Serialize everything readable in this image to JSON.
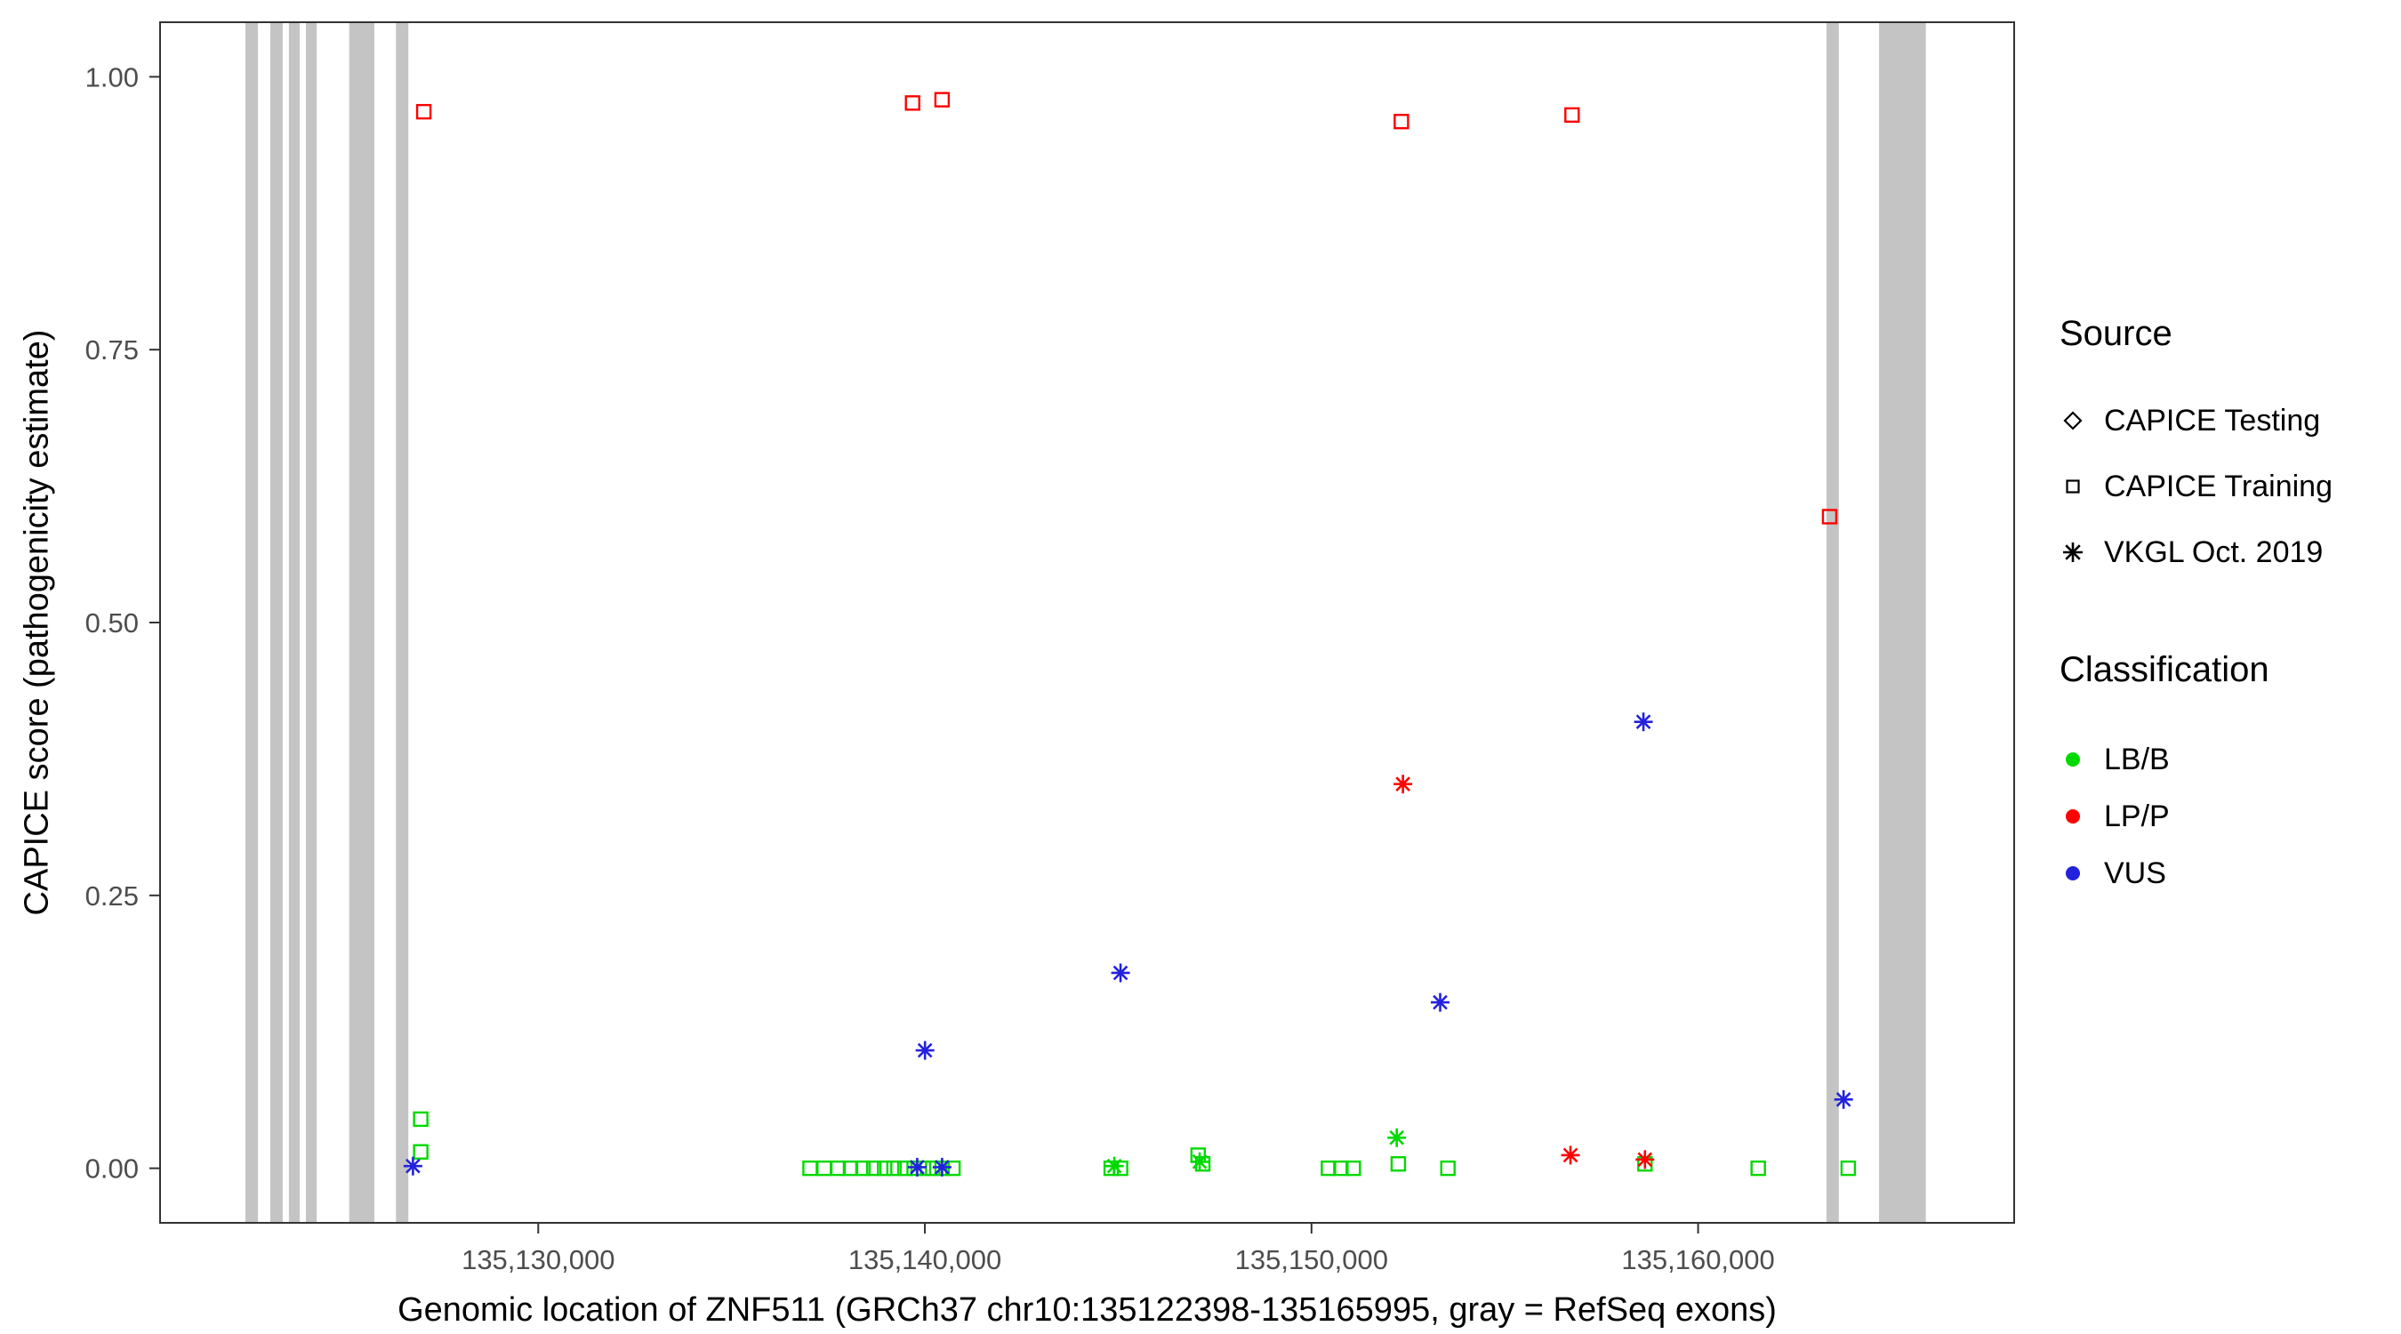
{
  "chart_data": {
    "type": "scatter",
    "title": "",
    "xlabel": "Genomic location of ZNF511 (GRCh37 chr10:135122398-135165995, gray = RefSeq exons)",
    "ylabel": "CAPICE score (pathogenicity estimate)",
    "x_domain": [
      135120218,
      135168175
    ],
    "y_domain": [
      -0.05,
      1.05
    ],
    "grid": false,
    "legend_position": "right",
    "panel_border_color": "#333333",
    "tick_color": "#333333",
    "tick_label_color": "#4d4d4d",
    "exon_color": "#c4c4c4",
    "class_colors": {
      "LB/B": "#00d900",
      "LP/P": "#ff0000",
      "VUS": "#2222dd"
    },
    "x_ticks": [
      {
        "value": 135130000,
        "label": "135,130,000"
      },
      {
        "value": 135140000,
        "label": "135,140,000"
      },
      {
        "value": 135150000,
        "label": "135,150,000"
      },
      {
        "value": 135160000,
        "label": "135,160,000"
      }
    ],
    "y_ticks": [
      {
        "value": 0.0,
        "label": "0.00"
      },
      {
        "value": 0.25,
        "label": "0.25"
      },
      {
        "value": 0.5,
        "label": "0.50"
      },
      {
        "value": 0.75,
        "label": "0.75"
      },
      {
        "value": 1.0,
        "label": "1.00"
      }
    ],
    "exons": [
      {
        "start": 135122425,
        "end": 135122750
      },
      {
        "start": 135123070,
        "end": 135123390
      },
      {
        "start": 135123550,
        "end": 135123830
      },
      {
        "start": 135123990,
        "end": 135124270
      },
      {
        "start": 135125110,
        "end": 135125760
      },
      {
        "start": 135126320,
        "end": 135126640
      },
      {
        "start": 135163320,
        "end": 135163640
      },
      {
        "start": 135164680,
        "end": 135165890
      }
    ],
    "points": [
      {
        "x": 135126960,
        "y": 0.045,
        "shape": "square",
        "cls": "LB/B"
      },
      {
        "x": 135126960,
        "y": 0.015,
        "shape": "square",
        "cls": "LB/B"
      },
      {
        "x": 135137030,
        "y": 0.0,
        "shape": "square",
        "cls": "LB/B"
      },
      {
        "x": 135137395,
        "y": 0.0,
        "shape": "square",
        "cls": "LB/B"
      },
      {
        "x": 135137756,
        "y": 0.0,
        "shape": "square",
        "cls": "LB/B"
      },
      {
        "x": 135138077,
        "y": 0.0,
        "shape": "square",
        "cls": "LB/B"
      },
      {
        "x": 135138398,
        "y": 0.0,
        "shape": "square",
        "cls": "LB/B"
      },
      {
        "x": 135138679,
        "y": 0.0,
        "shape": "square",
        "cls": "LB/B"
      },
      {
        "x": 135138960,
        "y": 0.0,
        "shape": "square",
        "cls": "LB/B"
      },
      {
        "x": 135139201,
        "y": 0.0,
        "shape": "square",
        "cls": "LB/B"
      },
      {
        "x": 135139482,
        "y": 0.0,
        "shape": "square",
        "cls": "LB/B"
      },
      {
        "x": 135139722,
        "y": 0.0,
        "shape": "square",
        "cls": "LB/B"
      },
      {
        "x": 135139963,
        "y": 0.0,
        "shape": "square",
        "cls": "LB/B"
      },
      {
        "x": 135140204,
        "y": 0.0,
        "shape": "square",
        "cls": "LB/B"
      },
      {
        "x": 135140445,
        "y": 0.0,
        "shape": "square",
        "cls": "LB/B"
      },
      {
        "x": 135140726,
        "y": 0.0,
        "shape": "square",
        "cls": "LB/B"
      },
      {
        "x": 135144820,
        "y": 0.0,
        "shape": "square",
        "cls": "LB/B"
      },
      {
        "x": 135145061,
        "y": 0.0,
        "shape": "square",
        "cls": "LB/B"
      },
      {
        "x": 135147068,
        "y": 0.012,
        "shape": "square",
        "cls": "LB/B"
      },
      {
        "x": 135147188,
        "y": 0.004,
        "shape": "square",
        "cls": "LB/B"
      },
      {
        "x": 135150439,
        "y": 0.0,
        "shape": "square",
        "cls": "LB/B"
      },
      {
        "x": 135150760,
        "y": 0.0,
        "shape": "square",
        "cls": "LB/B"
      },
      {
        "x": 135151081,
        "y": 0.0,
        "shape": "square",
        "cls": "LB/B"
      },
      {
        "x": 135152245,
        "y": 0.004,
        "shape": "square",
        "cls": "LB/B"
      },
      {
        "x": 135153529,
        "y": 0.0,
        "shape": "square",
        "cls": "LB/B"
      },
      {
        "x": 135158625,
        "y": 0.004,
        "shape": "square",
        "cls": "LB/B"
      },
      {
        "x": 135161555,
        "y": 0.0,
        "shape": "square",
        "cls": "LB/B"
      },
      {
        "x": 135163883,
        "y": 0.0,
        "shape": "square",
        "cls": "LB/B"
      },
      {
        "x": 135127040,
        "y": 0.968,
        "shape": "square",
        "cls": "LP/P"
      },
      {
        "x": 135139682,
        "y": 0.976,
        "shape": "square",
        "cls": "LP/P"
      },
      {
        "x": 135140445,
        "y": 0.979,
        "shape": "square",
        "cls": "LP/P"
      },
      {
        "x": 135152325,
        "y": 0.959,
        "shape": "square",
        "cls": "LP/P"
      },
      {
        "x": 135156739,
        "y": 0.965,
        "shape": "square",
        "cls": "LP/P"
      },
      {
        "x": 135163401,
        "y": 0.597,
        "shape": "square",
        "cls": "LP/P"
      },
      {
        "x": 135126759,
        "y": 0.002,
        "shape": "asterisk",
        "cls": "VUS"
      },
      {
        "x": 135139802,
        "y": 0.001,
        "shape": "asterisk",
        "cls": "VUS"
      },
      {
        "x": 135140445,
        "y": 0.001,
        "shape": "asterisk",
        "cls": "VUS"
      },
      {
        "x": 135140003,
        "y": 0.108,
        "shape": "asterisk",
        "cls": "VUS"
      },
      {
        "x": 135145061,
        "y": 0.179,
        "shape": "asterisk",
        "cls": "VUS"
      },
      {
        "x": 135153328,
        "y": 0.152,
        "shape": "asterisk",
        "cls": "VUS"
      },
      {
        "x": 135158585,
        "y": 0.409,
        "shape": "asterisk",
        "cls": "VUS"
      },
      {
        "x": 135163762,
        "y": 0.063,
        "shape": "asterisk",
        "cls": "VUS"
      },
      {
        "x": 135152365,
        "y": 0.352,
        "shape": "asterisk",
        "cls": "LP/P"
      },
      {
        "x": 135156699,
        "y": 0.012,
        "shape": "asterisk",
        "cls": "LP/P"
      },
      {
        "x": 135158625,
        "y": 0.008,
        "shape": "asterisk",
        "cls": "LP/P"
      },
      {
        "x": 135152205,
        "y": 0.028,
        "shape": "asterisk",
        "cls": "LB/B"
      },
      {
        "x": 135147108,
        "y": 0.006,
        "shape": "asterisk",
        "cls": "LB/B"
      },
      {
        "x": 135144900,
        "y": 0.002,
        "shape": "asterisk",
        "cls": "LB/B"
      }
    ]
  },
  "legend": {
    "source": {
      "title": "Source",
      "items": [
        {
          "shape": "diamond",
          "label": "CAPICE Testing"
        },
        {
          "shape": "square",
          "label": "CAPICE Training"
        },
        {
          "shape": "asterisk",
          "label": "VKGL Oct. 2019"
        }
      ]
    },
    "classification": {
      "title": "Classification",
      "items": [
        {
          "key": "LB/B",
          "label": "LB/B",
          "color": "#00d900"
        },
        {
          "key": "LP/P",
          "label": "LP/P",
          "color": "#ff0000"
        },
        {
          "key": "VUS",
          "label": "VUS",
          "color": "#2222dd"
        }
      ]
    }
  }
}
